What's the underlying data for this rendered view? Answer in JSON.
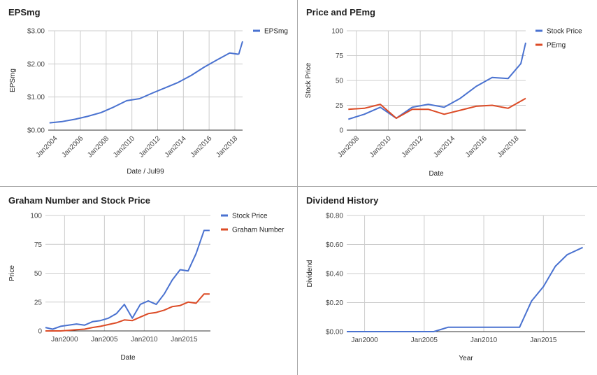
{
  "colors": {
    "blue": "#4a72d0",
    "red": "#dc4b26",
    "grid": "#cccccc",
    "baseline": "#333333"
  },
  "chart_data": [
    {
      "type": "line",
      "title": "EPSmg",
      "xlabel": "Date / Jul99",
      "ylabel": "EPSmg",
      "xlim": [
        2003.5,
        2018.6
      ],
      "ylim": [
        0,
        3
      ],
      "y_ticks": [
        0,
        1,
        2,
        3
      ],
      "y_tick_labels": [
        "$0.00",
        "$1.00",
        "$2.00",
        "$3.00"
      ],
      "x_ticks": [
        2004,
        2006,
        2008,
        2010,
        2012,
        2014,
        2016,
        2018
      ],
      "x_tick_labels": [
        "Jan2004",
        "Jan2006",
        "Jan2008",
        "Jan2010",
        "Jan2012",
        "Jan2014",
        "Jan2016",
        "Jan2018"
      ],
      "legend_position": "top-right",
      "series": [
        {
          "name": "EPSmg",
          "color": "#4a72d0",
          "x": [
            2003.6,
            2004.6,
            2005.6,
            2006.6,
            2007.6,
            2008.6,
            2009.6,
            2010.6,
            2011.6,
            2012.6,
            2013.6,
            2014.6,
            2015.6,
            2016.6,
            2017.6,
            2018.3
          ],
          "y": [
            0.22,
            0.26,
            0.33,
            0.42,
            0.53,
            0.7,
            0.89,
            0.95,
            1.12,
            1.28,
            1.44,
            1.65,
            1.9,
            2.12,
            2.33,
            2.29
          ]
        },
        {
          "name": "",
          "color": "#4a72d0",
          "x": [
            2018.3,
            2018.6
          ],
          "y": [
            2.29,
            2.68
          ]
        }
      ]
    },
    {
      "type": "line",
      "title": "Price and PEmg",
      "xlabel": "Date",
      "ylabel": "Stock Price",
      "xlim": [
        2007.4,
        2018.6
      ],
      "ylim": [
        0,
        100
      ],
      "y_ticks": [
        0,
        25,
        50,
        75,
        100
      ],
      "y_tick_labels": [
        "0",
        "25",
        "50",
        "75",
        "100"
      ],
      "x_ticks": [
        2008,
        2010,
        2012,
        2014,
        2016,
        2018
      ],
      "x_tick_labels": [
        "Jan2008",
        "Jan2010",
        "Jan2012",
        "Jan2014",
        "Jan2016",
        "Jan2018"
      ],
      "legend_position": "top-right",
      "series": [
        {
          "name": "Stock Price",
          "color": "#4a72d0",
          "x": [
            2007.5,
            2008.5,
            2009.5,
            2010.5,
            2011.5,
            2012.5,
            2013.5,
            2014.5,
            2015.5,
            2016.5,
            2017.5,
            2018.3,
            2018.6
          ],
          "y": [
            11,
            16,
            23,
            12,
            23,
            26,
            23,
            32,
            44,
            53,
            52,
            67,
            88
          ]
        },
        {
          "name": "PEmg",
          "color": "#dc4b26",
          "x": [
            2007.5,
            2008.5,
            2009.5,
            2010.5,
            2011.5,
            2012.5,
            2013.5,
            2014.5,
            2015.5,
            2016.5,
            2017.5,
            2018.6
          ],
          "y": [
            21,
            22,
            26,
            12,
            21,
            21,
            16,
            20,
            24,
            25,
            22,
            32
          ]
        }
      ]
    },
    {
      "type": "line",
      "title": "Graham Number and Stock Price",
      "xlabel": "Date",
      "ylabel": "Price",
      "xlim": [
        1997.6,
        2018.3
      ],
      "ylim": [
        0,
        100
      ],
      "y_ticks": [
        0,
        25,
        50,
        75,
        100
      ],
      "y_tick_labels": [
        "0",
        "25",
        "50",
        "75",
        "100"
      ],
      "x_ticks": [
        2000,
        2005,
        2010,
        2015
      ],
      "x_tick_labels": [
        "Jan2000",
        "Jan2005",
        "Jan2010",
        "Jan2015"
      ],
      "legend_position": "top-right",
      "series": [
        {
          "name": "Stock Price",
          "color": "#4a72d0",
          "x": [
            1997.6,
            1998.5,
            1999.5,
            2000.5,
            2001.5,
            2002.5,
            2003.5,
            2004.5,
            2005.5,
            2006.5,
            2007.5,
            2008.5,
            2009.5,
            2010.5,
            2011.5,
            2012.5,
            2013.5,
            2014.5,
            2015.5,
            2016.5,
            2017.5,
            2018.2
          ],
          "y": [
            3,
            1.5,
            4,
            5,
            6,
            5,
            8,
            9,
            11,
            15,
            23,
            11,
            23,
            26,
            23,
            32,
            44,
            53,
            52,
            67,
            87,
            87
          ]
        },
        {
          "name": "Graham Number",
          "color": "#dc4b26",
          "x": [
            1997.6,
            1998.5,
            1999.5,
            2000.5,
            2001.5,
            2002.5,
            2003.5,
            2004.5,
            2005.5,
            2006.5,
            2007.5,
            2008.5,
            2009.5,
            2010.5,
            2011.5,
            2012.5,
            2013.5,
            2014.5,
            2015.5,
            2016.5,
            2017.5,
            2018.2
          ],
          "y": [
            0,
            0,
            0,
            0.5,
            1,
            1.5,
            3,
            4,
            5.5,
            7,
            9.5,
            9,
            12,
            15,
            16,
            18,
            21,
            22,
            25,
            24,
            32,
            32
          ]
        }
      ]
    },
    {
      "type": "line",
      "title": "Dividend History",
      "xlabel": "Year",
      "ylabel": "Dividend",
      "xlim": [
        1998.5,
        2018.5
      ],
      "ylim": [
        0,
        0.8
      ],
      "y_ticks": [
        0,
        0.2,
        0.4,
        0.6,
        0.8
      ],
      "y_tick_labels": [
        "$0.00",
        "$0.20",
        "$0.40",
        "$0.60",
        "$0.80"
      ],
      "x_ticks": [
        2000,
        2005,
        2010,
        2015
      ],
      "x_tick_labels": [
        "Jan2000",
        "Jan2005",
        "Jan2010",
        "Jan2015"
      ],
      "series": [
        {
          "name": "",
          "color": "#4a72d0",
          "x": [
            1998.5,
            2005.8,
            2007,
            2008,
            2009,
            2010,
            2011,
            2012,
            2013,
            2014,
            2015,
            2016,
            2017,
            2018.3
          ],
          "y": [
            0,
            0,
            0.03,
            0.03,
            0.03,
            0.03,
            0.03,
            0.03,
            0.03,
            0.21,
            0.31,
            0.45,
            0.53,
            0.58
          ]
        }
      ]
    }
  ]
}
